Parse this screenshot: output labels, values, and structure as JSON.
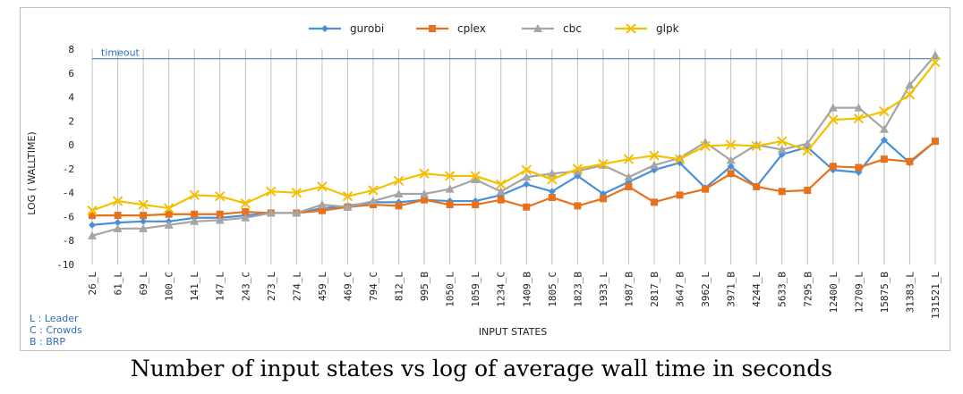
{
  "caption": "Number of input states vs log of average wall time in seconds",
  "notes": [
    "L : Leader",
    "C : Crowds",
    "B : BRP"
  ],
  "colors": {
    "gurobi": "#4a90d9",
    "cplex": "#e8711c",
    "cbc": "#a5a5a5",
    "glpk": "#f5c000",
    "timeout": "#2f6fb5",
    "grid": "#bfbfbf"
  },
  "chart_data": {
    "type": "line",
    "xlabel": "INPUT STATES",
    "ylabel": "LOG ( WALLTIME)",
    "ylim": [
      -10,
      8
    ],
    "yticks": [
      -10,
      -8,
      -6,
      -4,
      -2,
      0,
      2,
      4,
      6,
      8
    ],
    "grid": "vertical",
    "legend_position": "top-center",
    "categories": [
      "26_L",
      "61_L",
      "69_L",
      "100_C",
      "141_L",
      "147_L",
      "243_C",
      "273_L",
      "274_L",
      "459_L",
      "469_C",
      "794_C",
      "812_L",
      "995_B",
      "1050_L",
      "1059_L",
      "1234_C",
      "1409_B",
      "1805_C",
      "1823_B",
      "1933_L",
      "1987_B",
      "2817_B",
      "3647_B",
      "3962_L",
      "3971_B",
      "4244_L",
      "5633_B",
      "7295_B",
      "12400_L",
      "12709_L",
      "15875_B",
      "31383_L",
      "131521_L"
    ],
    "reference_line": {
      "label": "timeout",
      "value": 7.2
    },
    "series": [
      {
        "name": "gurobi",
        "marker": "diamond",
        "values": [
          -6.7,
          -6.5,
          -6.4,
          -6.4,
          -6.1,
          -6.1,
          -5.9,
          -5.7,
          -5.7,
          -5.3,
          -5.1,
          -4.8,
          -4.8,
          -4.6,
          -4.7,
          -4.7,
          -4.2,
          -3.3,
          -3.9,
          -2.6,
          -4.1,
          -3.1,
          -2.1,
          -1.5,
          -3.6,
          -1.8,
          -3.5,
          -0.8,
          -0.2,
          -2.1,
          -2.3,
          0.4,
          -1.5,
          0.3
        ]
      },
      {
        "name": "cplex",
        "marker": "square",
        "values": [
          -5.9,
          -5.9,
          -5.9,
          -5.8,
          -5.8,
          -5.8,
          -5.6,
          -5.7,
          -5.7,
          -5.5,
          -5.2,
          -5.0,
          -5.1,
          -4.6,
          -5.0,
          -5.0,
          -4.6,
          -5.2,
          -4.4,
          -5.1,
          -4.5,
          -3.5,
          -4.8,
          -4.2,
          -3.7,
          -2.4,
          -3.5,
          -3.9,
          -3.8,
          -1.8,
          -1.9,
          -1.2,
          -1.4,
          0.3
        ]
      },
      {
        "name": "cbc",
        "marker": "triangle",
        "values": [
          -7.6,
          -7.0,
          -7.0,
          -6.7,
          -6.4,
          -6.3,
          -6.1,
          -5.7,
          -5.7,
          -5.0,
          -5.2,
          -4.7,
          -4.1,
          -4.1,
          -3.7,
          -2.9,
          -3.9,
          -2.7,
          -2.4,
          -2.2,
          -1.7,
          -2.7,
          -1.7,
          -1.1,
          0.2,
          -1.3,
          0.0,
          -0.4,
          0.1,
          3.1,
          3.1,
          1.3,
          5.0,
          7.5
        ]
      },
      {
        "name": "glpk",
        "marker": "x",
        "values": [
          -5.5,
          -4.7,
          -5.0,
          -5.3,
          -4.2,
          -4.3,
          -4.9,
          -3.9,
          -4.0,
          -3.5,
          -4.3,
          -3.8,
          -3.0,
          -2.4,
          -2.6,
          -2.6,
          -3.3,
          -2.1,
          -2.9,
          -2.0,
          -1.6,
          -1.2,
          -0.9,
          -1.2,
          -0.1,
          0.0,
          -0.1,
          0.3,
          -0.5,
          2.1,
          2.2,
          2.8,
          4.2,
          6.9
        ]
      }
    ]
  }
}
